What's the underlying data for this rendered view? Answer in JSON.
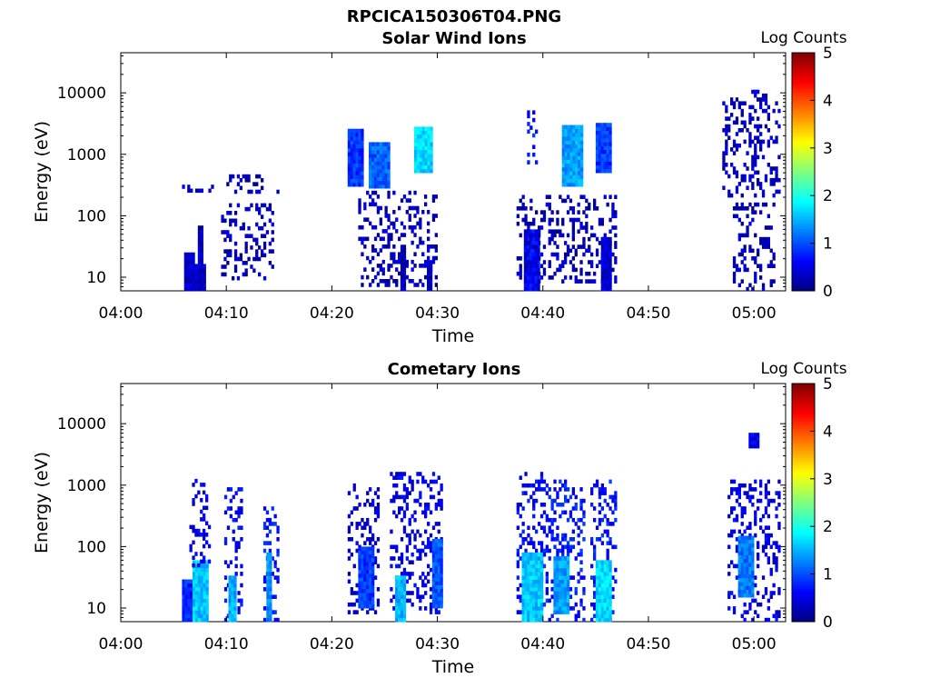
{
  "figure": {
    "title": "RPCICA150306T04.PNG"
  },
  "colorbar": {
    "label": "Log Counts",
    "range": [
      0,
      5
    ],
    "ticks": [
      "0",
      "1",
      "2",
      "3",
      "4",
      "5"
    ],
    "colormap": "jet"
  },
  "chart_data": [
    {
      "type": "heatmap",
      "title": "Solar Wind Ions",
      "xlabel": "Time",
      "ylabel": "Energy (eV)",
      "xlim": [
        "04:00",
        "05:03"
      ],
      "ylim": [
        6,
        45000
      ],
      "yscale": "log",
      "xticks": [
        "04:00",
        "04:10",
        "04:20",
        "04:30",
        "04:40",
        "04:50",
        "05:00"
      ],
      "yticks": [
        "10",
        "100",
        "1000",
        "10000"
      ],
      "regions": [
        {
          "t": [
            6.0,
            7.0
          ],
          "e": [
            6,
            22
          ],
          "level": 0.3
        },
        {
          "t": [
            6.3,
            8.0
          ],
          "e": [
            6,
            15
          ],
          "level": 0.4
        },
        {
          "t": [
            7.3,
            7.8
          ],
          "e": [
            6,
            65
          ],
          "level": 0.3
        },
        {
          "t": [
            5.8,
            9.5
          ],
          "e": [
            240,
            300
          ],
          "level": 0.3,
          "sparse": true
        },
        {
          "t": [
            10.0,
            15.0
          ],
          "e": [
            230,
            450
          ],
          "level": 0.3,
          "sparse": true
        },
        {
          "t": [
            9.5,
            14.5
          ],
          "e": [
            9,
            140
          ],
          "level": 0.3,
          "sparse": true
        },
        {
          "t": [
            21.5,
            23.0
          ],
          "e": [
            300,
            2500
          ],
          "level": 0.9
        },
        {
          "t": [
            23.5,
            25.5
          ],
          "e": [
            280,
            1400
          ],
          "level": 1.1
        },
        {
          "t": [
            27.8,
            29.5
          ],
          "e": [
            500,
            2700
          ],
          "level": 1.7
        },
        {
          "t": [
            22.5,
            30.0
          ],
          "e": [
            7,
            250
          ],
          "level": 0.3,
          "sparse": true
        },
        {
          "t": [
            26.5,
            27.0
          ],
          "e": [
            6,
            30
          ],
          "level": 0.3
        },
        {
          "t": [
            29.0,
            29.3
          ],
          "e": [
            6,
            18
          ],
          "level": 0.3
        },
        {
          "t": [
            38.2,
            39.5
          ],
          "e": [
            6,
            60
          ],
          "level": 0.6
        },
        {
          "t": [
            38.5,
            39.5
          ],
          "e": [
            600,
            5000
          ],
          "level": 0.7,
          "sparse": true
        },
        {
          "t": [
            41.8,
            43.8
          ],
          "e": [
            300,
            3000
          ],
          "level": 1.4
        },
        {
          "t": [
            45.0,
            46.5
          ],
          "e": [
            500,
            3000
          ],
          "level": 0.9
        },
        {
          "t": [
            37.5,
            47.0
          ],
          "e": [
            8,
            200
          ],
          "level": 0.3,
          "sparse": true
        },
        {
          "t": [
            45.5,
            46.5
          ],
          "e": [
            6,
            40
          ],
          "level": 0.4
        },
        {
          "t": [
            57.0,
            62.5
          ],
          "e": [
            200,
            10000
          ],
          "level": 0.3,
          "sparse": true
        },
        {
          "t": [
            58.0,
            62.0
          ],
          "e": [
            6,
            150
          ],
          "level": 0.3,
          "sparse": true
        }
      ]
    },
    {
      "type": "heatmap",
      "title": "Cometary Ions",
      "xlabel": "Time",
      "ylabel": "Energy (eV)",
      "xlim": [
        "04:00",
        "05:03"
      ],
      "ylim": [
        6,
        45000
      ],
      "yscale": "log",
      "xticks": [
        "04:00",
        "04:10",
        "04:20",
        "04:30",
        "04:40",
        "04:50",
        "05:00"
      ],
      "yticks": [
        "10",
        "100",
        "1000",
        "10000"
      ],
      "regions": [
        {
          "t": [
            5.8,
            7.0
          ],
          "e": [
            6,
            28
          ],
          "level": 0.8
        },
        {
          "t": [
            6.8,
            8.2
          ],
          "e": [
            6,
            60
          ],
          "level": 1.6
        },
        {
          "t": [
            6.5,
            8.5
          ],
          "e": [
            40,
            1200
          ],
          "level": 0.5,
          "sparse": true
        },
        {
          "t": [
            9.8,
            11.5
          ],
          "e": [
            6,
            900
          ],
          "level": 0.6,
          "sparse": true
        },
        {
          "t": [
            10.2,
            10.8
          ],
          "e": [
            6,
            30
          ],
          "level": 1.5
        },
        {
          "t": [
            13.5,
            15.0
          ],
          "e": [
            6,
            400
          ],
          "level": 0.7,
          "sparse": true
        },
        {
          "t": [
            13.8,
            14.2
          ],
          "e": [
            6,
            70
          ],
          "level": 1.3
        },
        {
          "t": [
            21.5,
            24.5
          ],
          "e": [
            8,
            1000
          ],
          "level": 0.4,
          "sparse": true
        },
        {
          "t": [
            22.5,
            24.0
          ],
          "e": [
            10,
            90
          ],
          "level": 0.9
        },
        {
          "t": [
            25.5,
            30.5
          ],
          "e": [
            8,
            1500
          ],
          "level": 0.5,
          "sparse": true
        },
        {
          "t": [
            26.0,
            27.0
          ],
          "e": [
            6,
            30
          ],
          "level": 1.5
        },
        {
          "t": [
            29.5,
            30.5
          ],
          "e": [
            10,
            120
          ],
          "level": 1.0
        },
        {
          "t": [
            37.5,
            40.0
          ],
          "e": [
            6,
            1500
          ],
          "level": 0.6,
          "sparse": true
        },
        {
          "t": [
            38.0,
            40.0
          ],
          "e": [
            6,
            80
          ],
          "level": 1.6
        },
        {
          "t": [
            40.0,
            44.0
          ],
          "e": [
            6,
            1200
          ],
          "level": 0.7,
          "sparse": true
        },
        {
          "t": [
            41.0,
            42.5
          ],
          "e": [
            8,
            60
          ],
          "level": 1.4
        },
        {
          "t": [
            44.5,
            47.0
          ],
          "e": [
            6,
            1300
          ],
          "level": 0.7,
          "sparse": true
        },
        {
          "t": [
            45.0,
            46.5
          ],
          "e": [
            6,
            60
          ],
          "level": 1.7
        },
        {
          "t": [
            57.5,
            62.5
          ],
          "e": [
            6,
            1200
          ],
          "level": 0.5,
          "sparse": true
        },
        {
          "t": [
            58.5,
            60.0
          ],
          "e": [
            15,
            150
          ],
          "level": 1.2
        },
        {
          "t": [
            59.5,
            60.3
          ],
          "e": [
            4000,
            7000
          ],
          "level": 0.5
        }
      ]
    }
  ]
}
